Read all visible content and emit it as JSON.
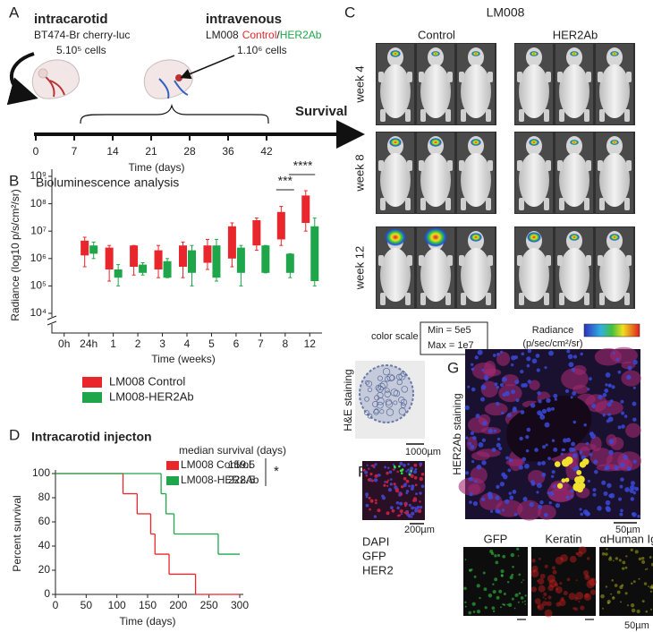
{
  "panel_a": {
    "letter": "A",
    "left_title": "intracarotid",
    "left_line1": "BT474-Br cherry-luc",
    "left_line2": "5.10⁵ cells",
    "right_title": "intravenous",
    "right_line1": [
      "LM008",
      "Control",
      "/",
      "HER2Ab"
    ],
    "right_line2": "1.10⁶ cells",
    "survival": "Survival",
    "timeline_ticks": [
      0,
      7,
      14,
      21,
      28,
      36,
      42
    ],
    "timeline_label": "Time (days)"
  },
  "chart_data": [
    {
      "type": "box",
      "letter": "B",
      "title": "Bioluminescence analysis",
      "y_label": "Radiance (log10 p/s/cm²/sr)",
      "x_label": "Time (weeks)",
      "log_y": true,
      "categories": [
        "0h",
        "24h",
        "1",
        "2",
        "3",
        "4",
        "5",
        "6",
        "7",
        "8",
        "12"
      ],
      "ylim": [
        10000,
        1000000000
      ],
      "yticks": [
        {
          "value": 10000,
          "label": "10⁴"
        },
        {
          "value": 100000,
          "label": "10⁵"
        },
        {
          "value": 1000000,
          "label": "10⁶"
        },
        {
          "value": 10000000,
          "label": "10⁷"
        },
        {
          "value": 100000000,
          "label": "10⁸"
        },
        {
          "value": 1000000000,
          "label": "10⁹"
        }
      ],
      "series": [
        {
          "name": "LM008 Control",
          "color": "#e8262b",
          "min": [
            null,
            500000,
            150000,
            250000,
            200000,
            200000,
            400000,
            500000,
            2000000,
            3000000,
            10000000
          ],
          "q1": [
            null,
            1300000,
            400000,
            500000,
            400000,
            500000,
            700000,
            1000000,
            3000000,
            5000000,
            20000000
          ],
          "q3": [
            null,
            4500000,
            2500000,
            3000000,
            2000000,
            3000000,
            3000000,
            15000000,
            25000000,
            50000000,
            200000000
          ],
          "max": [
            null,
            6000000,
            3000000,
            3000000,
            3000000,
            4000000,
            5000000,
            20000000,
            30000000,
            80000000,
            300000000
          ]
        },
        {
          "name": "LM008-HER2Ab",
          "color": "#1fa64a",
          "min": [
            null,
            1000000,
            100000,
            250000,
            200000,
            100000,
            150000,
            100000,
            300000,
            200000,
            100000
          ],
          "q1": [
            null,
            1500000,
            200000,
            300000,
            200000,
            300000,
            200000,
            300000,
            300000,
            300000,
            150000
          ],
          "q3": [
            null,
            3000000,
            400000,
            600000,
            800000,
            2000000,
            3000000,
            2500000,
            3000000,
            1500000,
            15000000
          ],
          "max": [
            null,
            4000000,
            600000,
            700000,
            1000000,
            3000000,
            5000000,
            3000000,
            3000000,
            1500000,
            30000000
          ]
        }
      ],
      "annotations": [
        "***",
        "****"
      ]
    },
    {
      "type": "step",
      "letter": "D",
      "title": "Intracarotid injecton",
      "y_label": "Percent survival",
      "x_label": "Time (days)",
      "xlim": [
        0,
        300
      ],
      "ylim": [
        0,
        100
      ],
      "xticks": [
        0,
        50,
        100,
        150,
        200,
        250,
        300
      ],
      "yticks": [
        0,
        20,
        40,
        60,
        80,
        100
      ],
      "legend_title": "median survival (days)",
      "significance": "*",
      "series": [
        {
          "name": "LM008 Control",
          "color": "#e8262b",
          "x": [
            0,
            110,
            133,
            155,
            162,
            185,
            228
          ],
          "values": [
            100,
            83.3,
            66.7,
            50,
            33.3,
            16.7,
            0
          ],
          "median": 159.5
        },
        {
          "name": "LM008-HER2Ab",
          "color": "#1fa64a",
          "x": [
            0,
            172,
            180,
            193,
            265
          ],
          "values": [
            100,
            83.3,
            66.7,
            50,
            33.3
          ],
          "median": 228.5
        }
      ]
    }
  ],
  "panel_c": {
    "letter": "C",
    "title": "LM008",
    "group_left": "Control",
    "group_right": "HER2Ab",
    "rows": [
      "week 4",
      "week 8",
      "week 12"
    ],
    "color_scale": "color scale",
    "min": "Min = 5e5",
    "max": "Max = 1e7",
    "radiance": "Radiance",
    "radiance_unit": "(p/sec/cm²/sr)"
  },
  "panel_e": {
    "letter": "E",
    "label": "H&E staining",
    "scale": "1000µm"
  },
  "panel_f": {
    "letter": "F",
    "scale": "200µm",
    "channels": [
      "DAPI",
      "GFP",
      "HER2"
    ]
  },
  "panel_g": {
    "letter": "G",
    "label": "HER2Ab staining",
    "scale": "50µm",
    "channels": [
      "GFP",
      "Keratin",
      "αHuman Igg"
    ],
    "scale_small": "50µm"
  }
}
